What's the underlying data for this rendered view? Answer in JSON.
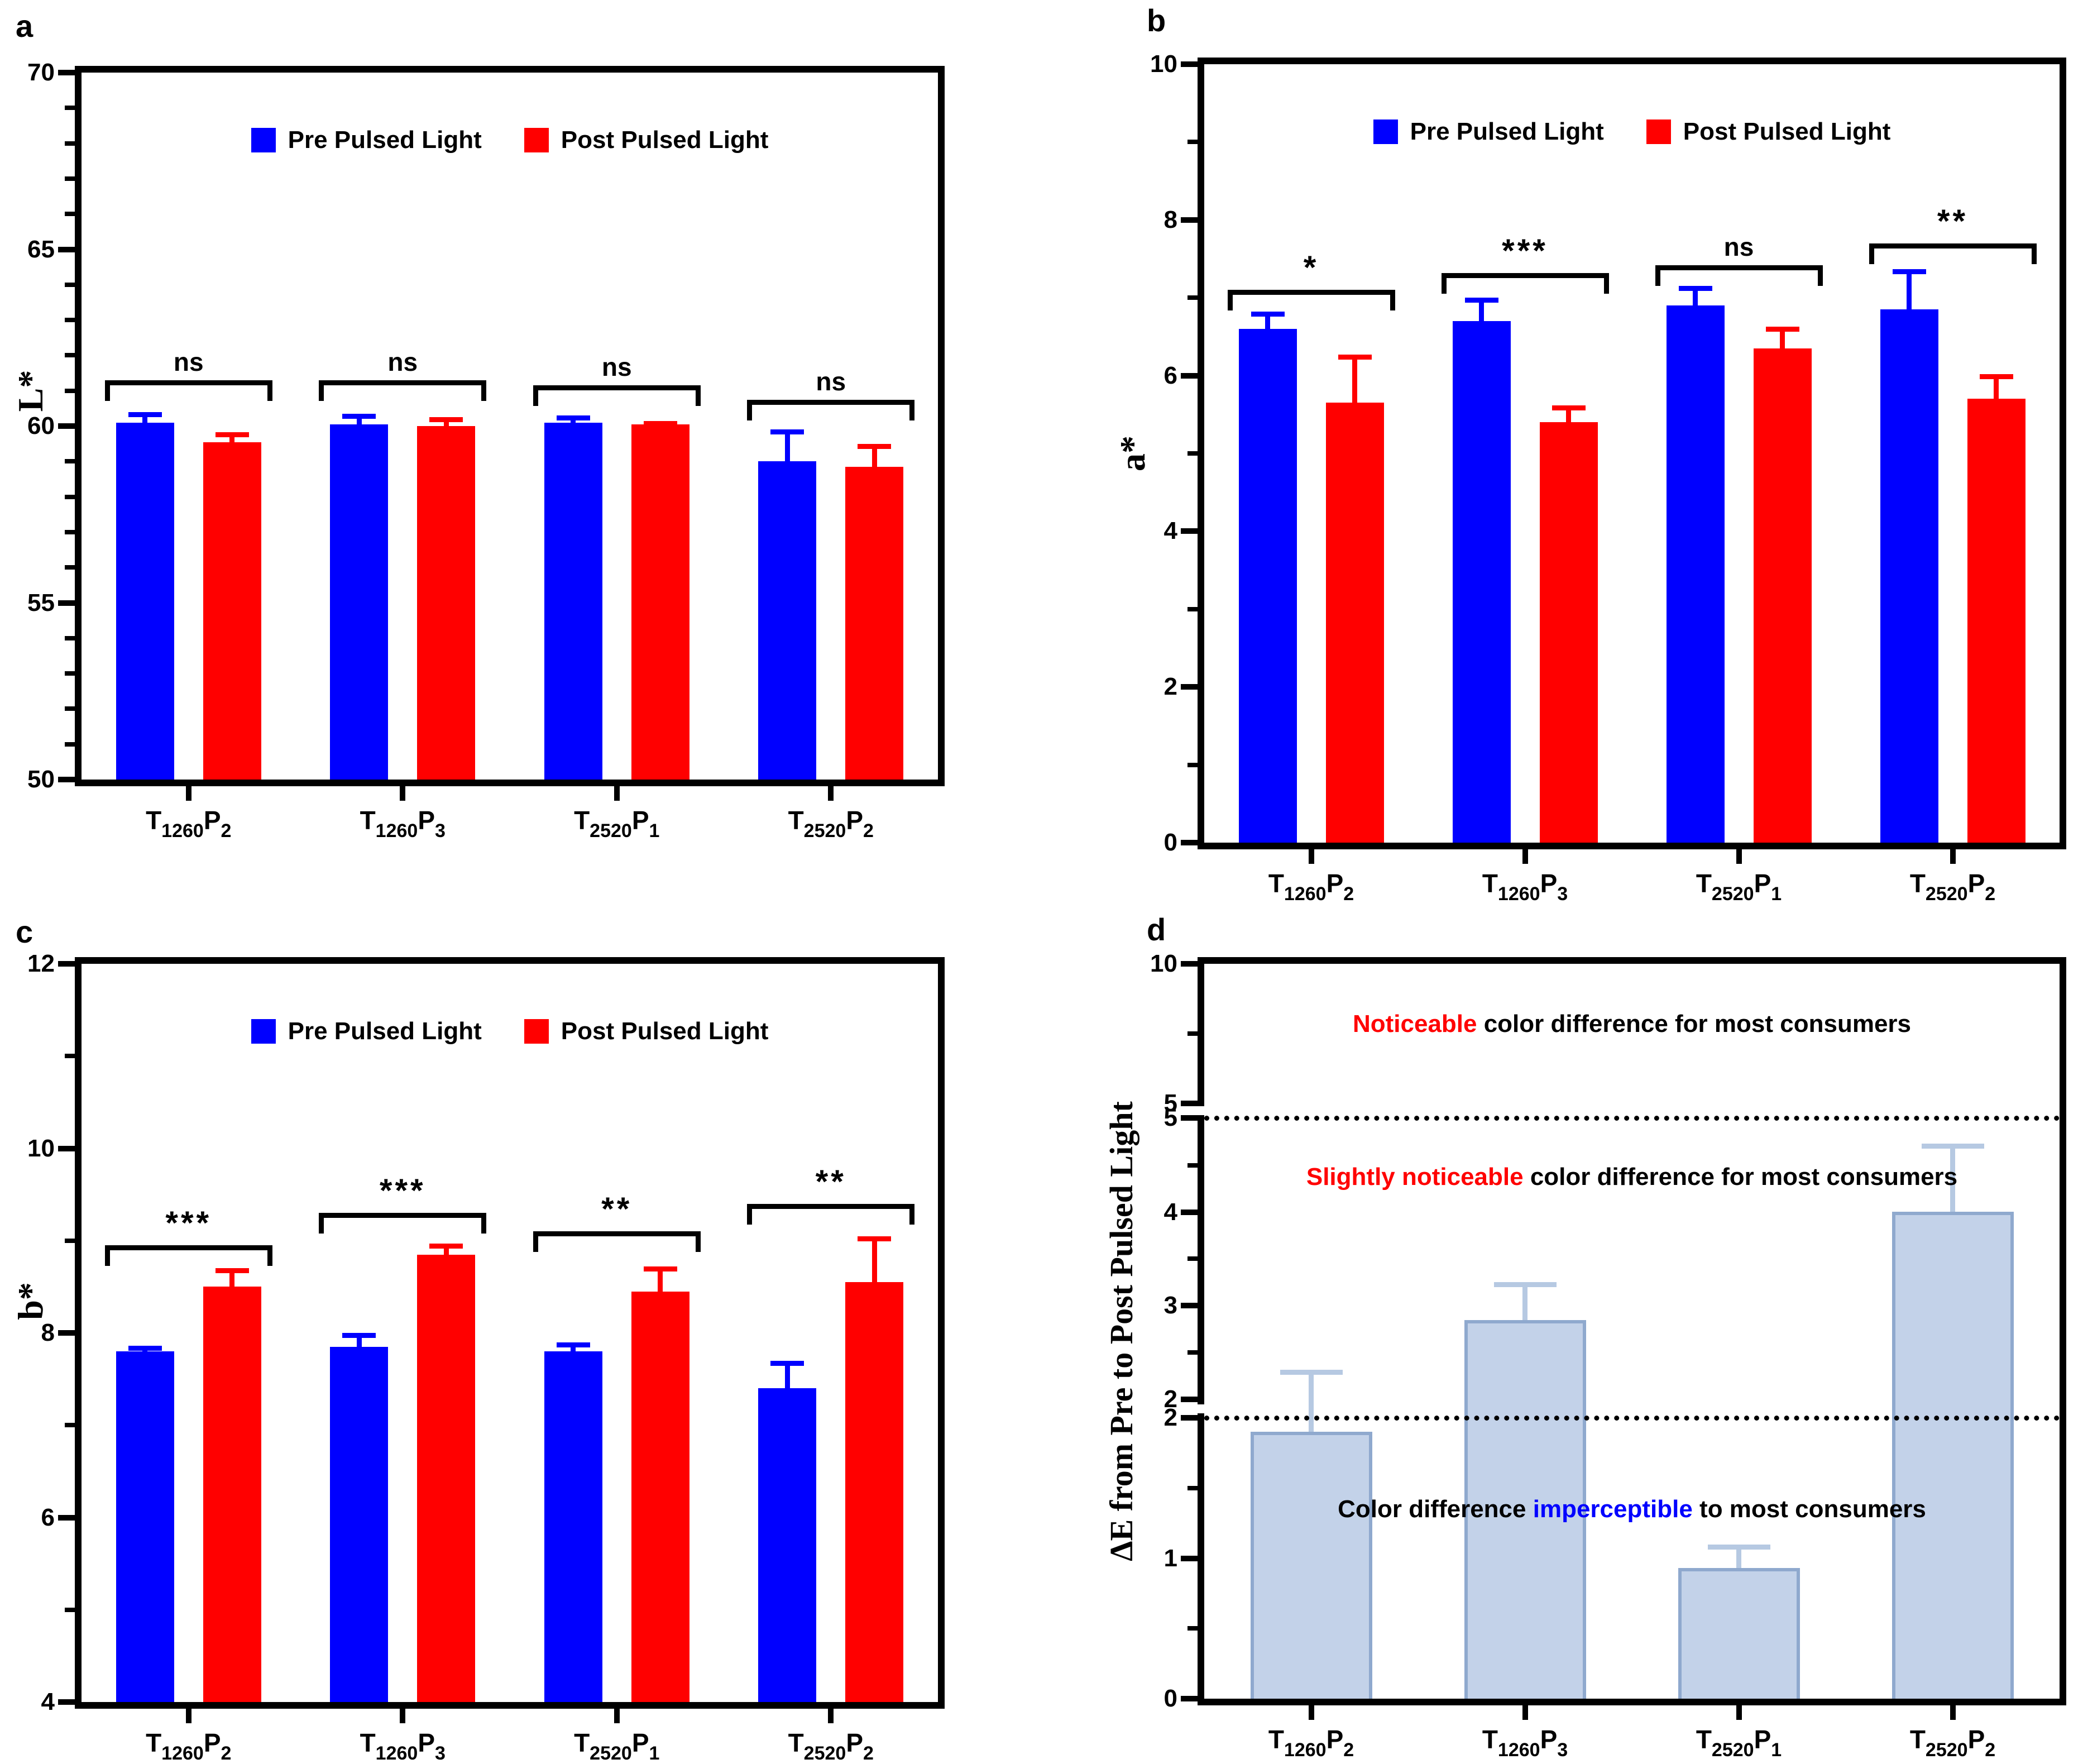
{
  "categories": [
    {
      "segments": [
        {
          "text": "T",
          "sub": false
        },
        {
          "text": "1260",
          "sub": true
        },
        {
          "text": "P",
          "sub": false
        },
        {
          "text": "2",
          "sub": true
        }
      ]
    },
    {
      "segments": [
        {
          "text": "T",
          "sub": false
        },
        {
          "text": "1260",
          "sub": true
        },
        {
          "text": "P",
          "sub": false
        },
        {
          "text": "3",
          "sub": true
        }
      ]
    },
    {
      "segments": [
        {
          "text": "T",
          "sub": false
        },
        {
          "text": "2520",
          "sub": true
        },
        {
          "text": "P",
          "sub": false
        },
        {
          "text": "1",
          "sub": true
        }
      ]
    },
    {
      "segments": [
        {
          "text": "T",
          "sub": false
        },
        {
          "text": "2520",
          "sub": true
        },
        {
          "text": "P",
          "sub": false
        },
        {
          "text": "2",
          "sub": true
        }
      ]
    }
  ],
  "legend": {
    "pre": "Pre Pulsed Light",
    "post": "Post Pulsed Light"
  },
  "colors": {
    "pre": "#0000FF",
    "post": "#FF0000",
    "deltaE_fill": "#C3D2E9",
    "deltaE_border": "#8FA9CE",
    "deltaE_error": "#B6C9E2",
    "annotation_red": "#FF0000",
    "annotation_blue": "#0000FF"
  },
  "chart_data": [
    {
      "id": "a",
      "label": "a",
      "type": "bar",
      "ylabel": "L*",
      "ylim": [
        50,
        70
      ],
      "yticks": [
        50,
        55,
        60,
        65,
        70
      ],
      "minor_step": 1,
      "legend": true,
      "series": [
        {
          "name": "Pre Pulsed Light",
          "color": "#0000FF",
          "values": [
            60.1,
            60.05,
            60.1,
            59.0
          ],
          "errors": [
            0.3,
            0.3,
            0.2,
            0.9
          ]
        },
        {
          "name": "Post Pulsed Light",
          "color": "#FF0000",
          "values": [
            59.55,
            60.0,
            60.05,
            58.85
          ],
          "errors": [
            0.28,
            0.25,
            0.1,
            0.65
          ]
        }
      ],
      "significance": [
        {
          "label": "ns",
          "y": 61.3
        },
        {
          "label": "ns",
          "y": 61.3
        },
        {
          "label": "ns",
          "y": 61.15
        },
        {
          "label": "ns",
          "y": 60.75
        }
      ]
    },
    {
      "id": "b",
      "label": "b",
      "type": "bar",
      "ylabel": "a*",
      "ylim": [
        0,
        10
      ],
      "yticks": [
        0,
        2,
        4,
        6,
        8,
        10
      ],
      "minor_step": 1,
      "legend": true,
      "series": [
        {
          "name": "Pre Pulsed Light",
          "color": "#0000FF",
          "values": [
            6.6,
            6.7,
            6.9,
            6.85
          ],
          "errors": [
            0.22,
            0.3,
            0.25,
            0.52
          ]
        },
        {
          "name": "Post Pulsed Light",
          "color": "#FF0000",
          "values": [
            5.65,
            5.4,
            6.35,
            5.7
          ],
          "errors": [
            0.62,
            0.22,
            0.28,
            0.32
          ]
        }
      ],
      "significance": [
        {
          "label": "*",
          "y": 7.1
        },
        {
          "label": "***",
          "y": 7.32
        },
        {
          "label": "ns",
          "y": 7.42
        },
        {
          "label": "**",
          "y": 7.7
        }
      ]
    },
    {
      "id": "c",
      "label": "c",
      "type": "bar",
      "ylabel": "b*",
      "ylim": [
        4,
        12
      ],
      "yticks": [
        4,
        6,
        8,
        10,
        12
      ],
      "minor_step": 1,
      "legend": true,
      "series": [
        {
          "name": "Pre Pulsed Light",
          "color": "#0000FF",
          "values": [
            7.8,
            7.85,
            7.8,
            7.4
          ],
          "errors": [
            0.06,
            0.15,
            0.1,
            0.3
          ]
        },
        {
          "name": "Post Pulsed Light",
          "color": "#FF0000",
          "values": [
            8.5,
            8.85,
            8.45,
            8.55
          ],
          "errors": [
            0.2,
            0.12,
            0.27,
            0.5
          ]
        }
      ],
      "significance": [
        {
          "label": "***",
          "y": 8.95
        },
        {
          "label": "***",
          "y": 9.3
        },
        {
          "label": "**",
          "y": 9.1
        },
        {
          "label": "**",
          "y": 9.4
        }
      ]
    },
    {
      "id": "d",
      "label": "d",
      "type": "bar",
      "ylabel": "ΔE from Pre to Post Pulsed Light",
      "ylim": [
        0,
        10
      ],
      "axis_segments": [
        {
          "from": 0,
          "to": 2,
          "f0": 0.0,
          "f1": 0.382
        },
        {
          "from": 2,
          "to": 5,
          "f0": 0.407,
          "f1": 0.79
        },
        {
          "from": 5,
          "to": 10,
          "f0": 0.81,
          "f1": 1.0
        }
      ],
      "major_ticks": [
        {
          "label": "0",
          "f": 0.0
        },
        {
          "label": "1",
          "f": 0.191
        },
        {
          "label": "2",
          "f": 0.382
        },
        {
          "label": "2",
          "f": 0.407
        },
        {
          "label": "3",
          "f": 0.535
        },
        {
          "label": "4",
          "f": 0.662
        },
        {
          "label": "5",
          "f": 0.79
        },
        {
          "label": "5",
          "f": 0.81
        },
        {
          "label": "10",
          "f": 1.0
        }
      ],
      "minor_fracs": [
        0.0955,
        0.2865,
        0.471,
        0.5985,
        0.726,
        0.905
      ],
      "axis_breaks": [
        {
          "f": 0.3945
        },
        {
          "f": 0.8
        }
      ],
      "dotted_lines": [
        {
          "f": 0.382,
          "value": 2
        },
        {
          "f": 0.79,
          "value": 5
        }
      ],
      "series": [
        {
          "color": "#C3D2E9",
          "border": "#8FA9CE",
          "error_color": "#B6C9E2",
          "values": [
            1.9,
            2.85,
            0.93,
            4.0
          ],
          "errors": [
            0.42,
            0.4,
            0.17,
            0.73
          ]
        }
      ],
      "annotations": [
        {
          "f": 0.92,
          "parts": [
            {
              "text": "Noticeable",
              "color": "#FF0000"
            },
            {
              "text": " color difference for most consumers",
              "color": "#000000"
            }
          ]
        },
        {
          "f": 0.712,
          "parts": [
            {
              "text": "Slightly noticeable",
              "color": "#FF0000"
            },
            {
              "text": " color difference for most consumers",
              "color": "#000000"
            }
          ]
        },
        {
          "f": 0.26,
          "parts": [
            {
              "text": "Color difference ",
              "color": "#000000"
            },
            {
              "text": "imperceptible",
              "color": "#0000FF"
            },
            {
              "text": " to most consumers",
              "color": "#000000"
            }
          ]
        }
      ]
    }
  ]
}
